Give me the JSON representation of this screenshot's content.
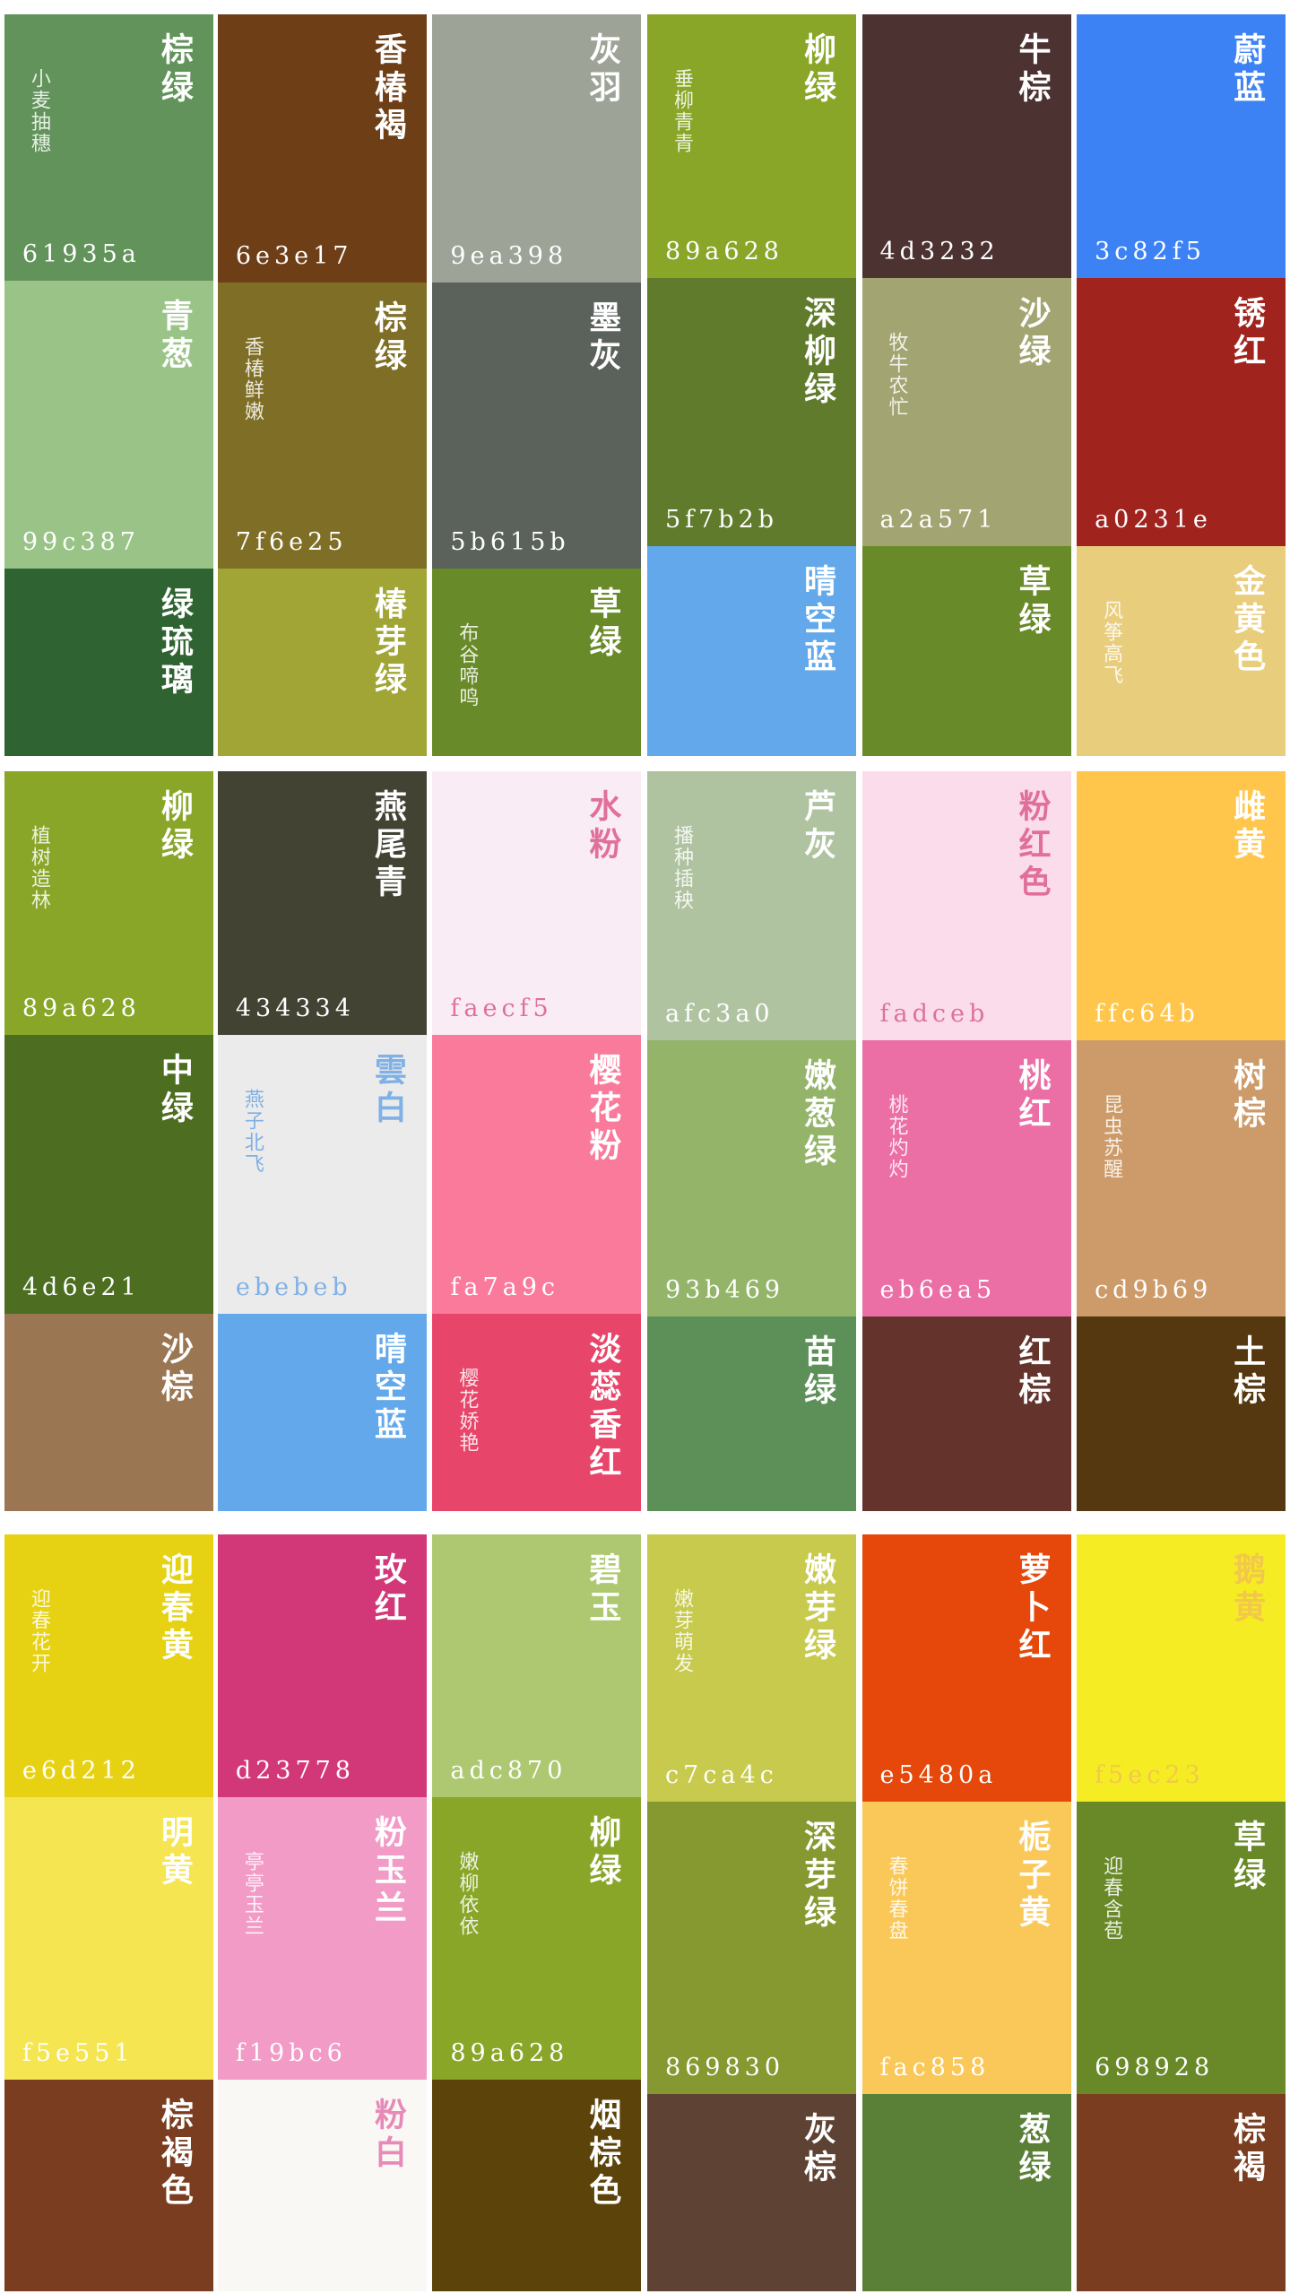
{
  "sections": [
    {
      "columns": [
        {
          "tiles": [
            {
              "name": "棕绿",
              "code": "61935a",
              "note": "小麦抽穗"
            },
            {
              "name": "青葱",
              "code": "99c387"
            },
            {
              "name": "绿琉璃",
              "color": "#2f6432"
            }
          ]
        },
        {
          "tiles": [
            {
              "name": "香椿褐",
              "code": "6e3e17"
            },
            {
              "name": "棕绿",
              "code": "7f6e25",
              "note": "香椿鲜嫩"
            },
            {
              "name": "椿芽绿",
              "color": "#a0a535"
            }
          ]
        },
        {
          "tiles": [
            {
              "name": "灰羽",
              "code": "9ea398"
            },
            {
              "name": "墨灰",
              "code": "5b615b"
            },
            {
              "name": "草绿",
              "note": "布谷啼鸣",
              "color": "#698a28"
            }
          ]
        },
        {
          "tiles": [
            {
              "name": "柳绿",
              "code": "89a628",
              "note": "垂柳青青"
            },
            {
              "name": "深柳绿",
              "code": "5f7b2b"
            },
            {
              "name": "晴空蓝",
              "color": "#62a8ea"
            }
          ]
        },
        {
          "tiles": [
            {
              "name": "牛棕",
              "code": "4d3232"
            },
            {
              "name": "沙绿",
              "code": "a2a571",
              "note": "牧牛农忙"
            },
            {
              "name": "草绿",
              "color": "#698a28"
            }
          ]
        },
        {
          "tiles": [
            {
              "name": "蔚蓝",
              "code": "3c82f5"
            },
            {
              "name": "锈红",
              "code": "a0231e"
            },
            {
              "name": "金黄色",
              "note": "风筝高飞",
              "color": "#e8cd7c"
            }
          ]
        }
      ]
    },
    {
      "columns": [
        {
          "tiles": [
            {
              "name": "柳绿",
              "code": "89a628",
              "note": "植树造林"
            },
            {
              "name": "中绿",
              "code": "4d6e21"
            },
            {
              "name": "沙棕",
              "color": "#9a7653"
            }
          ]
        },
        {
          "tiles": [
            {
              "name": "燕尾青",
              "code": "434334"
            },
            {
              "name": "雲白",
              "code": "ebebeb",
              "note": "燕子北飞",
              "ink": "#7fb0e6"
            },
            {
              "name": "晴空蓝",
              "color": "#62a8ea"
            }
          ]
        },
        {
          "tiles": [
            {
              "name": "水粉",
              "code": "faecf5",
              "ink": "#e0709a"
            },
            {
              "name": "樱花粉",
              "code": "fa7a9c"
            },
            {
              "name": "淡蕊香红",
              "note": "樱花娇艳",
              "color": "#e8456a"
            }
          ]
        },
        {
          "tiles": [
            {
              "name": "芦灰",
              "code": "afc3a0",
              "note": "播种插秧"
            },
            {
              "name": "嫩葱绿",
              "code": "93b469"
            },
            {
              "name": "苗绿",
              "color": "#5c9058"
            }
          ]
        },
        {
          "tiles": [
            {
              "name": "粉红色",
              "code": "fadceb",
              "ink": "#e0709a"
            },
            {
              "name": "桃红",
              "code": "eb6ea5",
              "note": "桃花灼灼"
            },
            {
              "name": "红棕",
              "color": "#64342c"
            }
          ]
        },
        {
          "tiles": [
            {
              "name": "雌黄",
              "code": "ffc64b"
            },
            {
              "name": "树棕",
              "code": "cd9b69",
              "note": "昆虫苏醒"
            },
            {
              "name": "土棕",
              "color": "#55380f"
            }
          ]
        }
      ]
    },
    {
      "columns": [
        {
          "tiles": [
            {
              "name": "迎春黄",
              "code": "e6d212",
              "note": "迎春花开"
            },
            {
              "name": "明黄",
              "code": "f5e551"
            },
            {
              "name": "棕褐色",
              "color": "#7a3d1f"
            }
          ]
        },
        {
          "tiles": [
            {
              "name": "玫红",
              "code": "d23778"
            },
            {
              "name": "粉玉兰",
              "code": "f19bc6",
              "note": "亭亭玉兰"
            },
            {
              "name": "粉白",
              "color": "#f9f8f5",
              "ink": "#e88ab8"
            }
          ]
        },
        {
          "tiles": [
            {
              "name": "碧玉",
              "code": "adc870"
            },
            {
              "name": "柳绿",
              "code": "89a628",
              "note": "嫩柳依依"
            },
            {
              "name": "烟棕色",
              "color": "#5c4309"
            }
          ]
        },
        {
          "tiles": [
            {
              "name": "嫩芽绿",
              "code": "c7ca4c",
              "note": "嫩芽萌发"
            },
            {
              "name": "深芽绿",
              "code": "869830"
            },
            {
              "name": "灰棕",
              "color": "#5e4234"
            }
          ]
        },
        {
          "tiles": [
            {
              "name": "萝卜红",
              "code": "e5480a"
            },
            {
              "name": "栀子黄",
              "code": "fac858",
              "note": "春饼春盘"
            },
            {
              "name": "葱绿",
              "color": "#5a8038"
            }
          ]
        },
        {
          "tiles": [
            {
              "name": "鹅黄",
              "code": "f5ec23",
              "ink": "#f2c84a"
            },
            {
              "name": "草绿",
              "code": "698928",
              "note": "迎春含苞"
            },
            {
              "name": "棕褐",
              "color": "#7a3d1f"
            }
          ]
        }
      ]
    }
  ]
}
